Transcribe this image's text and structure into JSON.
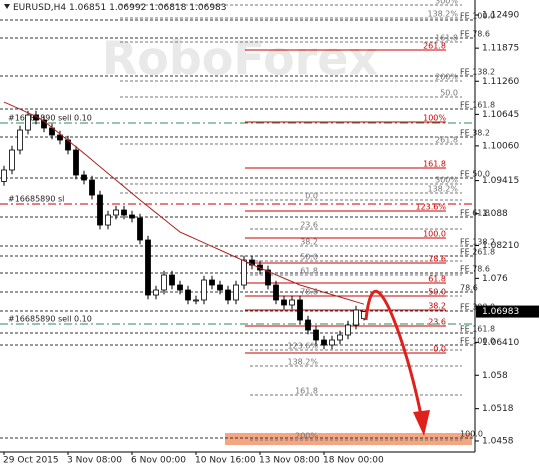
{
  "chart_data": {
    "type": "candlestick",
    "symbol": "EURUSD,H4",
    "watermark": "RoboForex",
    "categories": [
      "29 Oct 2015",
      null,
      null,
      null,
      null,
      null,
      null,
      null,
      "3 Nov 08:00",
      null,
      null,
      null,
      null,
      null,
      null,
      null,
      "6 Nov 00:00",
      null,
      null,
      null,
      null,
      null,
      null,
      null,
      "10 Nov 16:00",
      null,
      null,
      null,
      null,
      null,
      null,
      null,
      "13 Nov 08:00",
      null,
      null,
      null,
      null,
      null,
      null,
      null,
      "18 Nov 00:00",
      null,
      null,
      null,
      null,
      null
    ],
    "open": [
      1.094,
      1.09612,
      1.09983,
      1.10354,
      1.10633,
      1.1054,
      1.10392,
      1.10262,
      1.10169,
      1.09983,
      1.09519,
      1.09426,
      1.09147,
      1.0859,
      1.08776,
      1.08869,
      1.08776,
      1.0872,
      1.08312,
      1.0729,
      1.07383,
      1.07662,
      1.07476,
      1.07383,
      1.07198,
      1.07198,
      1.07569,
      1.07476,
      1.07383,
      1.07198,
      1.07476,
      1.0794,
      1.07847,
      1.07755,
      1.07476,
      1.07198,
      1.07105,
      1.07198,
      1.06826,
      1.0664,
      1.06455,
      1.06362,
      1.06455,
      1.06548,
      1.06733,
      1.06851
    ],
    "high": [
      1.09692,
      1.10063,
      1.10434,
      1.10713,
      1.10713,
      1.1062,
      1.10472,
      1.10342,
      1.10249,
      1.10063,
      1.09599,
      1.09506,
      1.09227,
      1.08856,
      1.08949,
      1.08949,
      1.08856,
      1.088,
      1.08392,
      1.07463,
      1.07742,
      1.07742,
      1.07556,
      1.07463,
      1.07278,
      1.07649,
      1.07649,
      1.07556,
      1.07463,
      1.07556,
      1.0802,
      1.0802,
      1.07927,
      1.07835,
      1.07556,
      1.07278,
      1.07278,
      1.07278,
      1.06906,
      1.0672,
      1.06535,
      1.06535,
      1.06628,
      1.06813,
      1.07092,
      1.06992
    ],
    "low": [
      1.0932,
      1.09532,
      1.09903,
      1.10274,
      1.1046,
      1.10312,
      1.10182,
      1.10089,
      1.09903,
      1.09439,
      1.09346,
      1.09067,
      1.0851,
      1.0851,
      1.08696,
      1.08696,
      1.0864,
      1.08232,
      1.0721,
      1.0721,
      1.07303,
      1.07396,
      1.07303,
      1.07118,
      1.07118,
      1.07118,
      1.07396,
      1.07303,
      1.07118,
      1.07118,
      1.07396,
      1.07767,
      1.07675,
      1.07396,
      1.07118,
      1.07025,
      1.07025,
      1.06746,
      1.0656,
      1.06375,
      1.06282,
      1.06282,
      1.06375,
      1.06468,
      1.06653,
      1.06818
    ],
    "close": [
      1.09612,
      1.09983,
      1.10354,
      1.10633,
      1.1054,
      1.10392,
      1.10262,
      1.10169,
      1.09983,
      1.09519,
      1.09426,
      1.09147,
      1.0859,
      1.08776,
      1.08869,
      1.08776,
      1.0872,
      1.08312,
      1.0729,
      1.07383,
      1.07662,
      1.07476,
      1.07383,
      1.07198,
      1.07198,
      1.07569,
      1.07476,
      1.07383,
      1.07198,
      1.07476,
      1.0794,
      1.07847,
      1.07755,
      1.07476,
      1.07198,
      1.07105,
      1.07198,
      1.06826,
      1.0664,
      1.06455,
      1.06362,
      1.06455,
      1.06548,
      1.06733,
      1.07012,
      1.06983
    ],
    "ma": {
      "color": "#b22222",
      "values": [
        1.10874,
        1.10808,
        1.10741,
        1.10674,
        1.10607,
        1.10518,
        1.10399,
        1.1028,
        1.10161,
        1.10042,
        1.09922,
        1.09797,
        1.09673,
        1.0955,
        1.09426,
        1.09302,
        1.09179,
        1.09055,
        1.08936,
        1.08817,
        1.08698,
        1.08579,
        1.0846,
        1.08393,
        1.08327,
        1.0826,
        1.08193,
        1.08126,
        1.08059,
        1.07992,
        1.07925,
        1.07859,
        1.07792,
        1.07729,
        1.07665,
        1.07602,
        1.07539,
        1.07476,
        1.07432,
        1.07387,
        1.07342,
        1.07298,
        1.07253,
        1.07209,
        1.07164,
        1.0712
      ]
    },
    "ylim": [
      1.04375,
      1.12769
    ],
    "yticks": [
      {
        "value": 1.1249,
        "label": "1.12490"
      },
      {
        "value": 1.11875,
        "label": "1.11875"
      },
      {
        "value": 1.1126,
        "label": "1.11260"
      },
      {
        "value": 1.10645,
        "label": "1.10645"
      },
      {
        "value": 1.1006,
        "label": "1.10060"
      },
      {
        "value": 1.09415,
        "label": "1.09415"
      },
      1.088,
      {
        "value": 1.0821,
        "label": "1.08210"
      },
      1.076,
      {
        "value": 1.0641,
        "label": "1.06410"
      },
      1.058,
      1.0518,
      1.0458
    ],
    "level_groups": [
      {
        "color": "#333333",
        "levels": [
          {
            "label": "FE 100.0",
            "price": 1.12397
          },
          {
            "label": "FE 78.6",
            "price": 1.12063
          },
          {
            "label": "FE 138.2",
            "price": 1.11357
          },
          {
            "label": "FE 161.8",
            "price": 1.10744
          },
          {
            "label": "FE 38.2",
            "price": 1.10224
          },
          {
            "label": "FE 50.0",
            "price": 1.09463
          },
          {
            "label": "FE 61.8",
            "price": 1.08739
          },
          {
            "label": "FE 138.2",
            "price": 1.082
          },
          {
            "label": "FE 261.8",
            "price": 1.08015
          },
          {
            "label": "FE 78.6",
            "price": 1.07699
          },
          {
            "label": "78.6",
            "price": 1.07346
          },
          {
            "label": "FE 300.0",
            "price": 1.06993
          },
          {
            "label": "FE 161.8",
            "price": 1.06585
          },
          {
            "label": "FE 100.0",
            "price": 1.06362
          },
          {
            "label": "100.0",
            "price": 1.04635
          }
        ]
      },
      {
        "color": "#777777",
        "levels": [
          {
            "label": "300%",
            "price": 1.12676
          },
          {
            "label": "138.2%",
            "price": 1.12434
          },
          {
            "label": "161.8",
            "price": 1.11989
          },
          {
            "label": "200%",
            "price": 1.11264
          },
          {
            "label": "50.0",
            "price": 1.10967
          },
          {
            "label": "261.8",
            "price": 1.10094
          },
          {
            "label": "300%",
            "price": 1.09352
          },
          {
            "label": "138.2%",
            "price": 1.09185
          }
        ]
      },
      {
        "color": "#777777",
        "levels": [
          {
            "label": "0.0",
            "price": 1.09055
          },
          {
            "label": "23.6",
            "price": 1.08516
          },
          {
            "label": "38.2",
            "price": 1.082
          },
          {
            "label": "50.0",
            "price": 1.07922
          },
          {
            "label": "61.8",
            "price": 1.07662
          },
          {
            "label": "78.6",
            "price": 1.07272
          },
          {
            "label": "123.6%",
            "price": 1.06269
          },
          {
            "label": "138.2%",
            "price": 1.05972
          },
          {
            "label": "161.8",
            "price": 1.05433
          },
          {
            "label": "200%",
            "price": 1.04598
          }
        ]
      },
      {
        "color": "#cc0000",
        "levels": [
          {
            "label": "261.8",
            "price": 1.1184
          },
          {
            "label": "100%",
            "price": 1.10503
          },
          {
            "label": "161.8",
            "price": 1.09649
          },
          {
            "label": "123.6%",
            "price": 1.0885
          },
          {
            "label": "100.0",
            "price": 1.08349
          },
          {
            "label": "78.6",
            "price": 1.07885
          },
          {
            "label": "61.8",
            "price": 1.07513
          },
          {
            "label": "50.0",
            "price": 1.07272
          },
          {
            "label": "38.2",
            "price": 1.07012
          },
          {
            "label": "23.6",
            "price": 1.06715
          },
          {
            "label": "0.0",
            "price": 1.06213
          }
        ]
      }
    ],
    "orders": [
      {
        "label": "#16685890 sell 0.10",
        "price": 1.10484,
        "color": "#2e8b57"
      },
      {
        "label": "#16685890 sl",
        "price": 1.0898,
        "color": "#cc0000"
      },
      {
        "label": "#16685890 sell 0.10",
        "price": 1.06752,
        "color": "#2e8b57"
      }
    ]
  }
}
